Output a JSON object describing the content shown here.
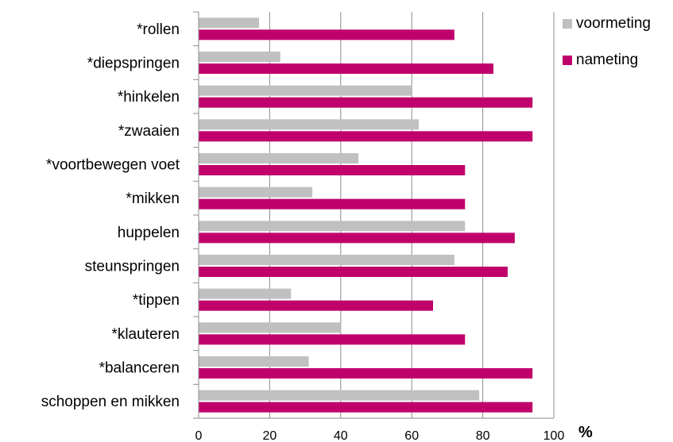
{
  "chart_data": {
    "type": "bar",
    "orientation": "horizontal",
    "categories": [
      "*rollen",
      "*diepspringen",
      "*hinkelen",
      "*zwaaien",
      "*voortbewegen voet",
      "*mikken",
      "huppelen",
      "steunspringen",
      "*tippen",
      "*klauteren",
      "*balanceren",
      "schoppen en mikken"
    ],
    "series": [
      {
        "name": "voormeting",
        "color": "#c0c0c0",
        "values": [
          17,
          23,
          60,
          62,
          45,
          32,
          75,
          72,
          26,
          40,
          31,
          79
        ]
      },
      {
        "name": "nameting",
        "color": "#c0006b",
        "values": [
          72,
          83,
          94,
          94,
          75,
          75,
          89,
          87,
          66,
          75,
          94,
          94
        ]
      }
    ],
    "xlim": [
      0,
      100
    ],
    "xticks": [
      "0",
      "20",
      "40",
      "60",
      "80",
      "100"
    ],
    "xunit": "%",
    "grid": true,
    "legend": "top-right"
  }
}
